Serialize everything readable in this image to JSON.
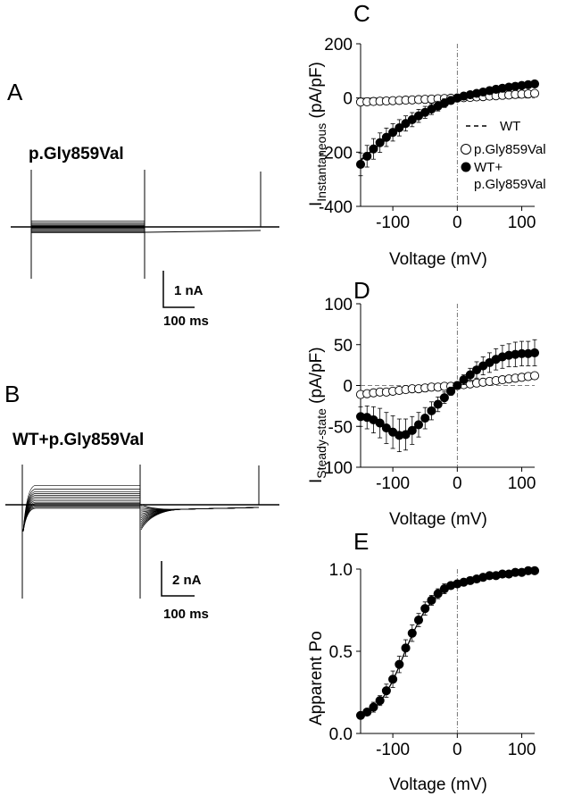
{
  "panels": {
    "A": {
      "letter": "A",
      "title": "p.Gly859Val",
      "scale_current": "1 nA",
      "scale_time": "100 ms",
      "trace_offsets": [
        0.22,
        0.15,
        0.1,
        0.06,
        0.03,
        0.0,
        -0.03,
        -0.06,
        -0.1,
        -0.14,
        -0.18,
        -0.22
      ]
    },
    "B": {
      "letter": "B",
      "title": "WT+p.Gly859Val",
      "scale_current": "2 nA",
      "scale_time": "100 ms",
      "trace_offsets": [
        0.62,
        0.5,
        0.42,
        0.36,
        0.3,
        0.24,
        0.18,
        0.13,
        0.08,
        0.04,
        0.0,
        -0.04,
        -0.08,
        -0.11
      ]
    }
  },
  "chart_data": [
    {
      "panel": "C",
      "type": "scatter",
      "ylabel_main": "I",
      "ylabel_sub": "Instantaneous",
      "ylabel_unit": " (pA/pF)",
      "xlabel": "Voltage (mV)",
      "xlim": [
        -150,
        120
      ],
      "ylim": [
        -400,
        200
      ],
      "xticks": [
        -100,
        0,
        100
      ],
      "yticks": [
        -400,
        -200,
        0,
        200
      ],
      "xtick_labels": [
        "-100",
        "0",
        "100"
      ],
      "ytick_labels": [
        "-400",
        "-200",
        "0",
        "200"
      ],
      "legend": {
        "wt": "WT",
        "mut": "p.Gly859Val",
        "combo_line1": "WT+",
        "combo_line2": "p.Gly859Val"
      },
      "x": [
        -150,
        -140,
        -130,
        -120,
        -110,
        -100,
        -90,
        -80,
        -70,
        -60,
        -50,
        -40,
        -30,
        -20,
        -10,
        0,
        10,
        20,
        30,
        40,
        50,
        60,
        70,
        80,
        90,
        100,
        110,
        120
      ],
      "series": [
        {
          "key": "wt",
          "style": "dashed",
          "values": [
            -230,
            -210,
            -190,
            -170,
            -152,
            -135,
            -118,
            -100,
            -85,
            -70,
            -56,
            -44,
            -32,
            -20,
            -10,
            0,
            8,
            14,
            20,
            26,
            31,
            36,
            40,
            44,
            48,
            51,
            54,
            57
          ]
        },
        {
          "key": "mut",
          "style": "open",
          "values": [
            -15,
            -14,
            -13,
            -12,
            -11,
            -10,
            -9,
            -8,
            -7,
            -6,
            -5,
            -4,
            -3,
            -2,
            -1,
            0,
            1,
            2,
            4,
            5,
            7,
            8,
            10,
            11,
            13,
            14,
            15,
            17
          ]
        },
        {
          "key": "combo",
          "style": "filled",
          "values": [
            -245,
            -215,
            -188,
            -165,
            -145,
            -127,
            -110,
            -94,
            -80,
            -66,
            -53,
            -41,
            -30,
            -19,
            -9,
            0,
            7,
            12,
            17,
            22,
            27,
            32,
            36,
            40,
            43,
            46,
            49,
            52
          ],
          "err": [
            42,
            40,
            38,
            36,
            34,
            32,
            30,
            28,
            26,
            24,
            22,
            20,
            18,
            16,
            14,
            12,
            10,
            9,
            8,
            7,
            7,
            7,
            8,
            8,
            9,
            9,
            10,
            10
          ]
        }
      ]
    },
    {
      "panel": "D",
      "type": "scatter",
      "ylabel_main": "I",
      "ylabel_sub": "Steady-state",
      "ylabel_unit": " (pA/pF)",
      "xlabel": "Voltage (mV)",
      "xlim": [
        -150,
        120
      ],
      "ylim": [
        -100,
        100
      ],
      "xticks": [
        -100,
        0,
        100
      ],
      "yticks": [
        -100,
        -50,
        0,
        50,
        100
      ],
      "xtick_labels": [
        "-100",
        "0",
        "100"
      ],
      "ytick_labels": [
        "-100",
        "-50",
        "0",
        "50",
        "100"
      ],
      "x": [
        -150,
        -140,
        -130,
        -120,
        -110,
        -100,
        -90,
        -80,
        -70,
        -60,
        -50,
        -40,
        -30,
        -20,
        -10,
        0,
        10,
        20,
        30,
        40,
        50,
        60,
        70,
        80,
        90,
        100,
        110,
        120
      ],
      "series": [
        {
          "key": "wt",
          "style": "dashed",
          "values": [
            -38,
            -40,
            -42,
            -46,
            -50,
            -55,
            -58,
            -57,
            -53,
            -47,
            -40,
            -32,
            -24,
            -16,
            -8,
            0,
            6,
            12,
            17,
            22,
            26,
            29,
            32,
            34,
            36,
            37,
            38,
            39
          ]
        },
        {
          "key": "mut",
          "style": "open",
          "values": [
            -11,
            -10,
            -9,
            -8,
            -8,
            -7,
            -6,
            -5,
            -4,
            -4,
            -3,
            -2,
            -2,
            -1,
            -1,
            0,
            1,
            2,
            3,
            4,
            5,
            6,
            7,
            8,
            9,
            10,
            11,
            12
          ]
        },
        {
          "key": "combo",
          "style": "filled",
          "values": [
            -38,
            -39,
            -42,
            -46,
            -52,
            -57,
            -61,
            -60,
            -55,
            -48,
            -40,
            -31,
            -23,
            -15,
            -7,
            0,
            7,
            13,
            19,
            24,
            28,
            32,
            35,
            37,
            38,
            39,
            39,
            40
          ],
          "err": [
            12,
            14,
            16,
            18,
            19,
            20,
            20,
            19,
            17,
            15,
            13,
            11,
            9,
            7,
            5,
            4,
            6,
            8,
            10,
            11,
            12,
            13,
            14,
            14,
            15,
            15,
            15,
            16
          ]
        }
      ]
    },
    {
      "panel": "E",
      "type": "scatter",
      "ylabel": "Apparent Po",
      "xlabel": "Voltage (mV)",
      "xlim": [
        -150,
        120
      ],
      "ylim": [
        0,
        1
      ],
      "xticks": [
        -100,
        0,
        100
      ],
      "yticks": [
        0,
        0.5,
        1
      ],
      "xtick_labels": [
        "-100",
        "0",
        "100"
      ],
      "ytick_labels": [
        "0.0",
        "0.5",
        "1.0"
      ],
      "x": [
        -150,
        -140,
        -130,
        -120,
        -110,
        -100,
        -90,
        -80,
        -70,
        -60,
        -50,
        -40,
        -30,
        -20,
        -10,
        0,
        10,
        20,
        30,
        40,
        50,
        60,
        70,
        80,
        90,
        100,
        110,
        120
      ],
      "series": [
        {
          "key": "combo",
          "style": "filled",
          "values": [
            0.11,
            0.13,
            0.16,
            0.2,
            0.26,
            0.33,
            0.42,
            0.52,
            0.61,
            0.69,
            0.76,
            0.81,
            0.85,
            0.88,
            0.9,
            0.91,
            0.92,
            0.93,
            0.94,
            0.95,
            0.96,
            0.96,
            0.97,
            0.97,
            0.98,
            0.98,
            0.99,
            0.99
          ],
          "err": [
            0.02,
            0.02,
            0.03,
            0.03,
            0.04,
            0.05,
            0.05,
            0.05,
            0.05,
            0.04,
            0.04,
            0.03,
            0.03,
            0.03,
            0.02,
            0.02,
            0.02,
            0.02,
            0.02,
            0.02,
            0.01,
            0.01,
            0.01,
            0.01,
            0.01,
            0.01,
            0.01,
            0.01
          ]
        },
        {
          "key": "fit",
          "style": "solid",
          "values": [
            0.1,
            0.12,
            0.15,
            0.19,
            0.25,
            0.32,
            0.41,
            0.51,
            0.6,
            0.68,
            0.75,
            0.8,
            0.84,
            0.87,
            0.89,
            0.9,
            0.91,
            0.92,
            0.93,
            0.94,
            0.95,
            0.96,
            0.96,
            0.97,
            0.97,
            0.98,
            0.98,
            0.99
          ]
        }
      ]
    }
  ]
}
